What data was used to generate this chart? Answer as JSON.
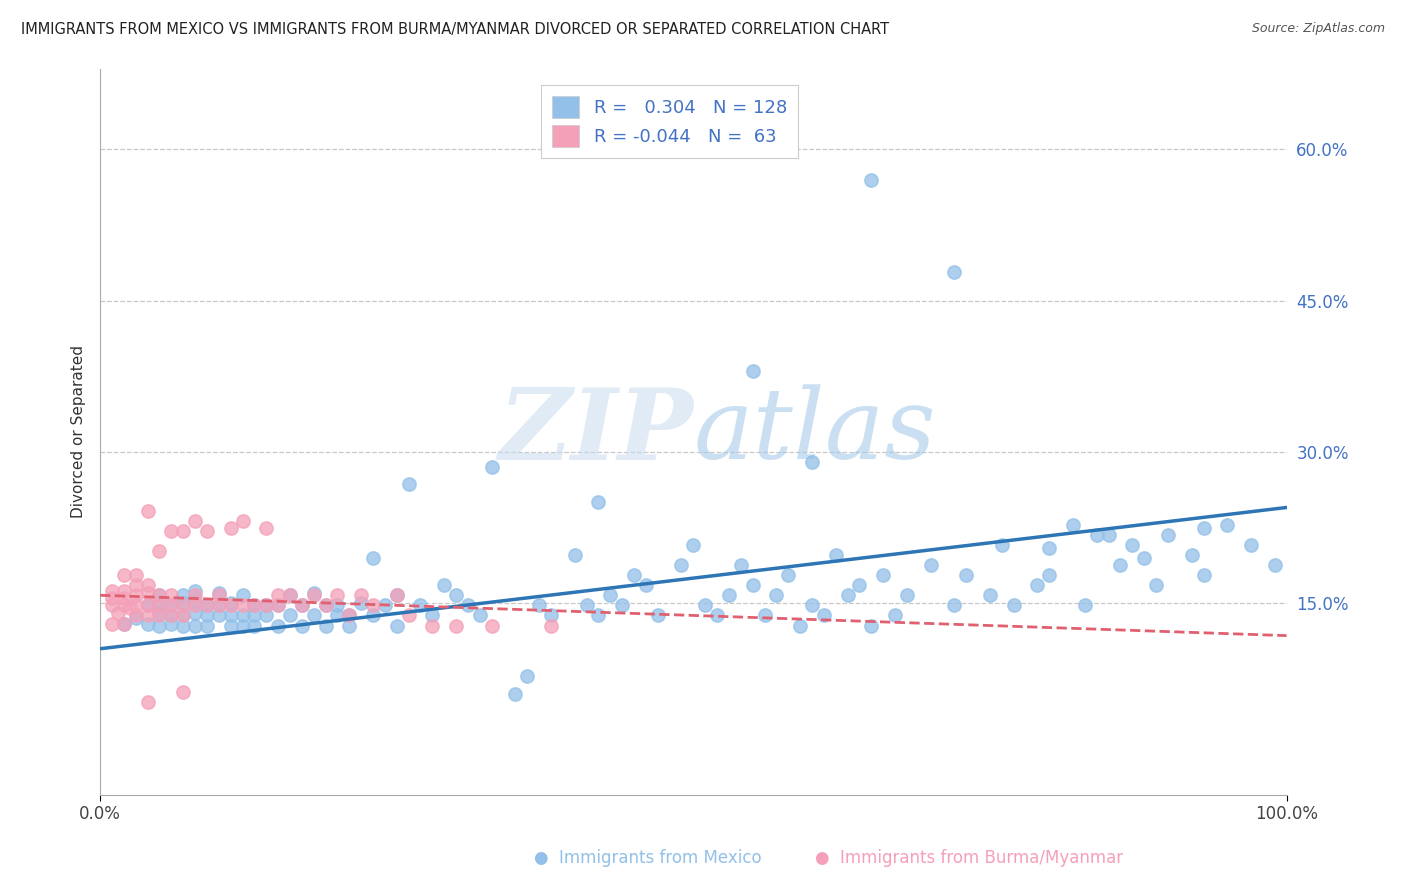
{
  "title": "IMMIGRANTS FROM MEXICO VS IMMIGRANTS FROM BURMA/MYANMAR DIVORCED OR SEPARATED CORRELATION CHART",
  "source": "Source: ZipAtlas.com",
  "ylabel": "Divorced or Separated",
  "watermark_zip": "ZIP",
  "watermark_atlas": "atlas",
  "blue_R": 0.304,
  "blue_N": 128,
  "pink_R": -0.044,
  "pink_N": 63,
  "blue_label": "Immigrants from Mexico",
  "pink_label": "Immigrants from Burma/Myanmar",
  "xlim": [
    0,
    1.0
  ],
  "ylim": [
    -0.04,
    0.68
  ],
  "yticks": [
    0.0,
    0.15,
    0.3,
    0.45,
    0.6
  ],
  "ytick_labels": [
    "",
    "15.0%",
    "30.0%",
    "45.0%",
    "60.0%"
  ],
  "xtick_labels": [
    "0.0%",
    "100.0%"
  ],
  "blue_color": "#92C0E8",
  "pink_color": "#F4A0B8",
  "blue_line_color": "#2E75B6",
  "pink_line_color": "#E06070",
  "grid_color": "#C8C8C8",
  "background_color": "#FFFFFF",
  "blue_trend_x": [
    0.0,
    1.0
  ],
  "blue_trend_y": [
    0.105,
    0.245
  ],
  "pink_trend_x": [
    0.0,
    1.0
  ],
  "pink_trend_y": [
    0.158,
    0.118
  ],
  "blue_scatter_x": [
    0.02,
    0.03,
    0.04,
    0.04,
    0.05,
    0.05,
    0.05,
    0.05,
    0.06,
    0.06,
    0.06,
    0.07,
    0.07,
    0.07,
    0.07,
    0.08,
    0.08,
    0.08,
    0.08,
    0.09,
    0.09,
    0.09,
    0.1,
    0.1,
    0.1,
    0.11,
    0.11,
    0.11,
    0.12,
    0.12,
    0.12,
    0.13,
    0.13,
    0.13,
    0.14,
    0.14,
    0.15,
    0.15,
    0.16,
    0.16,
    0.17,
    0.17,
    0.18,
    0.18,
    0.19,
    0.19,
    0.2,
    0.2,
    0.21,
    0.21,
    0.22,
    0.23,
    0.23,
    0.24,
    0.25,
    0.25,
    0.26,
    0.27,
    0.28,
    0.29,
    0.3,
    0.31,
    0.32,
    0.33,
    0.35,
    0.36,
    0.37,
    0.38,
    0.4,
    0.41,
    0.42,
    0.43,
    0.44,
    0.45,
    0.46,
    0.47,
    0.49,
    0.5,
    0.51,
    0.52,
    0.53,
    0.54,
    0.55,
    0.56,
    0.57,
    0.58,
    0.59,
    0.6,
    0.61,
    0.62,
    0.63,
    0.64,
    0.65,
    0.66,
    0.67,
    0.68,
    0.7,
    0.72,
    0.73,
    0.75,
    0.76,
    0.77,
    0.79,
    0.8,
    0.82,
    0.83,
    0.84,
    0.86,
    0.87,
    0.89,
    0.9,
    0.92,
    0.93,
    0.95,
    0.97,
    0.99,
    0.55,
    0.6,
    0.65,
    0.42,
    0.72,
    0.8,
    0.85,
    0.88,
    0.93
  ],
  "blue_scatter_y": [
    0.13,
    0.135,
    0.13,
    0.148,
    0.128,
    0.14,
    0.15,
    0.158,
    0.138,
    0.148,
    0.13,
    0.138,
    0.15,
    0.158,
    0.128,
    0.14,
    0.152,
    0.128,
    0.162,
    0.138,
    0.148,
    0.128,
    0.138,
    0.148,
    0.16,
    0.138,
    0.128,
    0.15,
    0.138,
    0.158,
    0.128,
    0.148,
    0.138,
    0.128,
    0.148,
    0.138,
    0.148,
    0.128,
    0.138,
    0.158,
    0.148,
    0.128,
    0.138,
    0.16,
    0.148,
    0.128,
    0.138,
    0.148,
    0.138,
    0.128,
    0.15,
    0.195,
    0.138,
    0.148,
    0.158,
    0.128,
    0.268,
    0.148,
    0.138,
    0.168,
    0.158,
    0.148,
    0.138,
    0.285,
    0.06,
    0.078,
    0.148,
    0.138,
    0.198,
    0.148,
    0.138,
    0.158,
    0.148,
    0.178,
    0.168,
    0.138,
    0.188,
    0.208,
    0.148,
    0.138,
    0.158,
    0.188,
    0.168,
    0.138,
    0.158,
    0.178,
    0.128,
    0.148,
    0.138,
    0.198,
    0.158,
    0.168,
    0.128,
    0.178,
    0.138,
    0.158,
    0.188,
    0.148,
    0.178,
    0.158,
    0.208,
    0.148,
    0.168,
    0.178,
    0.228,
    0.148,
    0.218,
    0.188,
    0.208,
    0.168,
    0.218,
    0.198,
    0.178,
    0.228,
    0.208,
    0.188,
    0.38,
    0.29,
    0.57,
    0.25,
    0.478,
    0.205,
    0.218,
    0.195,
    0.225
  ],
  "pink_scatter_x": [
    0.01,
    0.01,
    0.01,
    0.01,
    0.015,
    0.02,
    0.02,
    0.02,
    0.02,
    0.02,
    0.025,
    0.03,
    0.03,
    0.03,
    0.03,
    0.03,
    0.04,
    0.04,
    0.04,
    0.04,
    0.04,
    0.05,
    0.05,
    0.05,
    0.05,
    0.06,
    0.06,
    0.06,
    0.06,
    0.07,
    0.07,
    0.07,
    0.08,
    0.08,
    0.08,
    0.09,
    0.09,
    0.1,
    0.1,
    0.11,
    0.11,
    0.12,
    0.12,
    0.13,
    0.14,
    0.14,
    0.15,
    0.15,
    0.16,
    0.17,
    0.18,
    0.19,
    0.2,
    0.21,
    0.22,
    0.23,
    0.25,
    0.26,
    0.28,
    0.3,
    0.33,
    0.38,
    0.04,
    0.07
  ],
  "pink_scatter_y": [
    0.13,
    0.148,
    0.155,
    0.162,
    0.14,
    0.13,
    0.148,
    0.155,
    0.162,
    0.178,
    0.145,
    0.138,
    0.148,
    0.158,
    0.168,
    0.178,
    0.138,
    0.148,
    0.16,
    0.168,
    0.242,
    0.138,
    0.148,
    0.158,
    0.202,
    0.138,
    0.148,
    0.158,
    0.222,
    0.138,
    0.148,
    0.222,
    0.148,
    0.158,
    0.232,
    0.148,
    0.222,
    0.148,
    0.158,
    0.148,
    0.225,
    0.148,
    0.232,
    0.148,
    0.148,
    0.225,
    0.148,
    0.158,
    0.158,
    0.148,
    0.158,
    0.148,
    0.158,
    0.138,
    0.158,
    0.148,
    0.158,
    0.138,
    0.128,
    0.128,
    0.128,
    0.128,
    0.052,
    0.062
  ]
}
